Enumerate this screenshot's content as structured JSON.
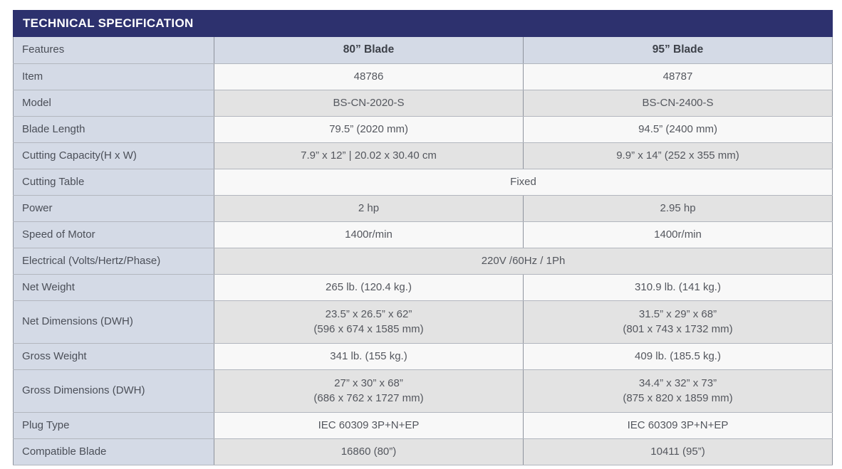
{
  "title": "TECHNICAL SPECIFICATION",
  "colors": {
    "header_bg": "#2d316e",
    "header_text": "#ffffff",
    "label_column_bg": "#d4dae6",
    "row_light_bg": "#f8f8f8",
    "row_dark_bg": "#e3e3e3",
    "border": "#9aa0aa",
    "label_text": "#4b4f58",
    "value_text": "#54575e"
  },
  "columns": {
    "feature": "Features",
    "blade80": "80” Blade",
    "blade95": "95” Blade"
  },
  "rows": [
    {
      "label": "Item",
      "col1": "48786",
      "col2": "48787"
    },
    {
      "label": "Model",
      "col1": "BS-CN-2020-S",
      "col2": "BS-CN-2400-S"
    },
    {
      "label": "Blade Length",
      "col1": "79.5” (2020 mm)",
      "col2": "94.5” (2400 mm)"
    },
    {
      "label": "Cutting Capacity(H x W)",
      "col1": "7.9” x 12” | 20.02 x 30.40 cm",
      "col2": "9.9” x 14” (252 x 355 mm)"
    },
    {
      "label": "Cutting Table",
      "span_value": "Fixed"
    },
    {
      "label": "Power",
      "col1": "2 hp",
      "col2": "2.95 hp"
    },
    {
      "label": "Speed of Motor",
      "col1": "1400r/min",
      "col2": "1400r/min"
    },
    {
      "label": "Electrical (Volts/Hertz/Phase)",
      "span_value": "220V /60Hz / 1Ph"
    },
    {
      "label": "Net Weight",
      "col1": "265 lb. (120.4 kg.)",
      "col2": "310.9 lb. (141 kg.)"
    },
    {
      "label": "Net Dimensions (DWH)",
      "col1": "23.5” x 26.5” x 62”\n(596 x 674 x 1585 mm)",
      "col2": "31.5” x 29” x 68”\n(801 x 743 x 1732 mm)"
    },
    {
      "label": "Gross Weight",
      "col1": "341 lb. (155 kg.)",
      "col2": "409 lb. (185.5 kg.)"
    },
    {
      "label": "Gross Dimensions (DWH)",
      "col1": "27” x 30” x 68”\n(686 x 762 x 1727 mm)",
      "col2": "34.4” x 32” x 73”\n(875 x 820 x 1859 mm)"
    },
    {
      "label": "Plug Type",
      "col1": "IEC 60309 3P+N+EP",
      "col2": "IEC 60309 3P+N+EP"
    },
    {
      "label": "Compatible Blade",
      "col1": "16860 (80”)",
      "col2": "10411 (95”)"
    }
  ]
}
